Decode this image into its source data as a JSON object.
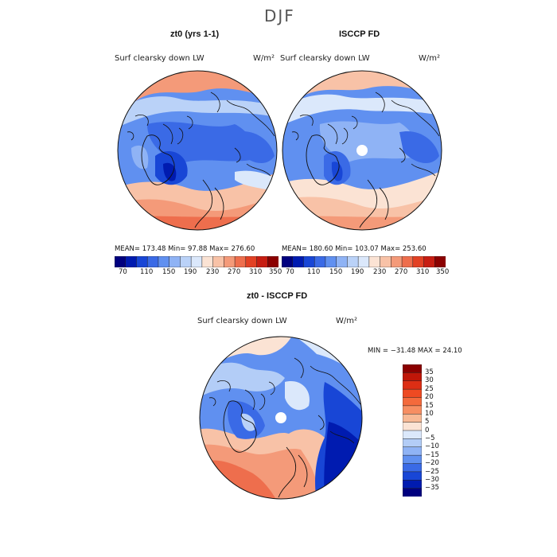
{
  "figure": {
    "title": "DJF"
  },
  "panels": {
    "model": {
      "title": "zt0 (yrs 1-1)",
      "variable": "Surf clearsky down LW",
      "units": "W/m²",
      "stats": "MEAN= 173.48   Min= 97.88   Max= 276.60"
    },
    "obs": {
      "title": "ISCCP FD",
      "variable": "Surf clearsky down LW",
      "units": "W/m²",
      "stats": "MEAN= 180.60   Min= 103.07   Max= 253.60"
    },
    "diff": {
      "title": "zt0 - ISCCP FD",
      "variable": "Surf clearsky down LW",
      "units": "W/m²",
      "stats": "MIN = −31.48 MAX =  24.10"
    }
  },
  "colorbar_abs": {
    "ticks": [
      "70",
      "110",
      "150",
      "190",
      "230",
      "270",
      "310",
      "350"
    ],
    "colors": [
      "#00007f",
      "#001bb0",
      "#1846d6",
      "#3a6ae6",
      "#6090f0",
      "#8fb3f5",
      "#bad2f8",
      "#dbe8fb",
      "#fbe3d4",
      "#f8c2a7",
      "#f49a79",
      "#ee6e4d",
      "#e24124",
      "#c71d12",
      "#8b0000"
    ]
  },
  "colorbar_diff": {
    "ticks": [
      "35",
      "30",
      "25",
      "20",
      "15",
      "10",
      "5",
      "0",
      "−5",
      "−10",
      "−15",
      "−20",
      "−25",
      "−30",
      "−35"
    ],
    "colors": [
      "#8b0000",
      "#c01608",
      "#dd2e14",
      "#ee4a22",
      "#f46a3c",
      "#f78e62",
      "#f8b995",
      "#fbe3d4",
      "#dbe8fb",
      "#b3cdf7",
      "#8fb3f5",
      "#6090f0",
      "#3a6ae6",
      "#1846d6",
      "#001bb0",
      "#00007f"
    ]
  }
}
